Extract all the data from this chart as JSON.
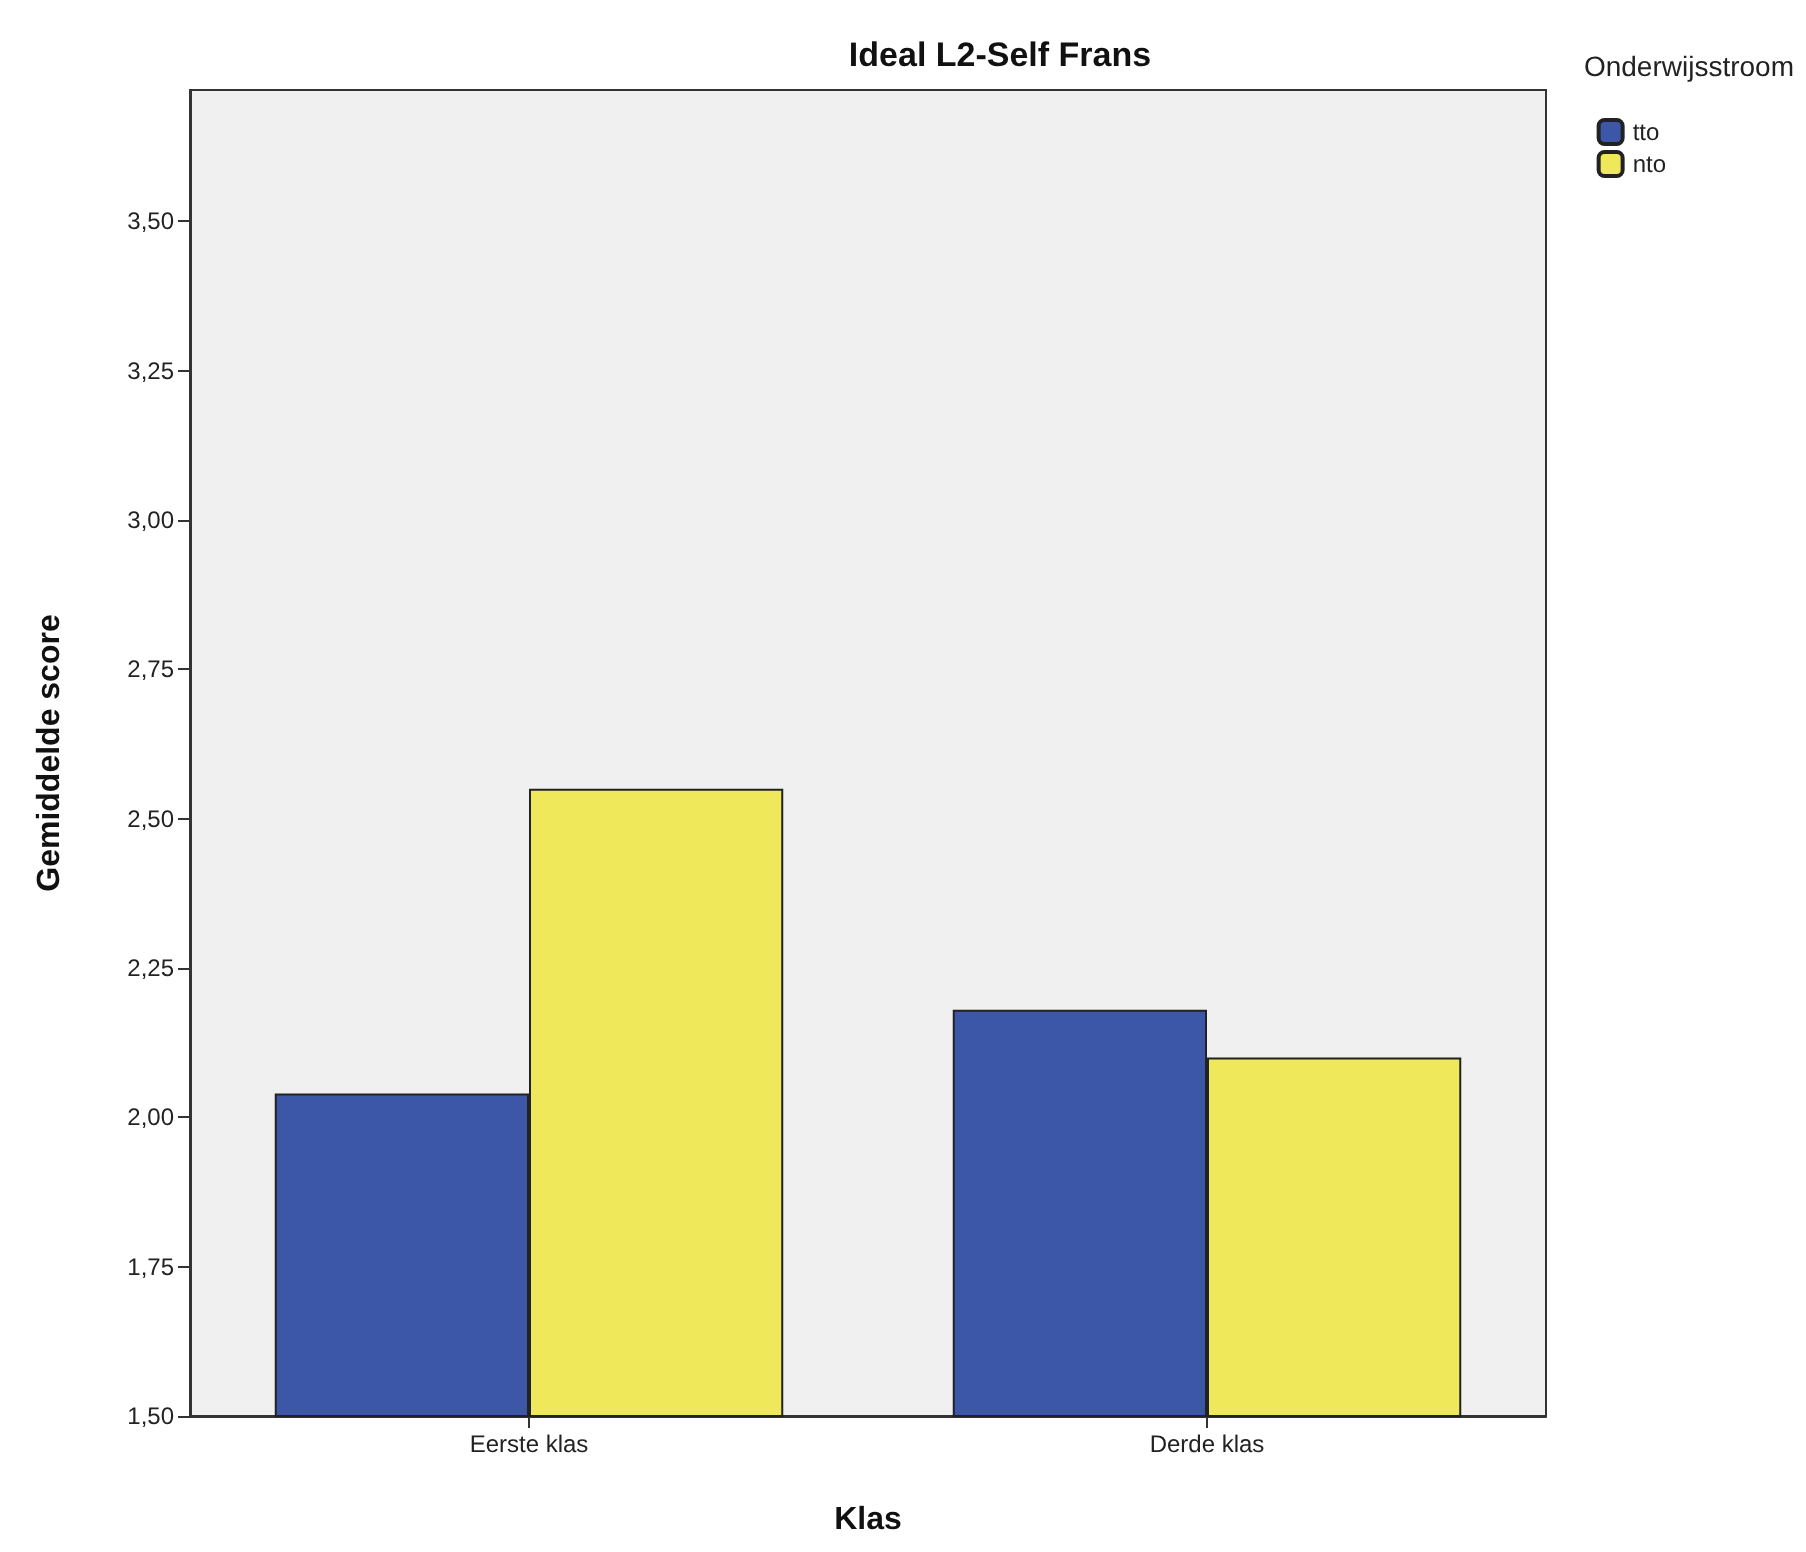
{
  "chart_data": {
    "type": "bar",
    "title": "Ideal L2-Self Frans",
    "xlabel": "Klas",
    "ylabel": "Gemiddelde score",
    "legend_title": "Onderwijsstroom",
    "categories": [
      "Eerste klas",
      "Derde klas"
    ],
    "series": [
      {
        "name": "tto",
        "color": "#3d57a8",
        "values": [
          2.04,
          2.18
        ]
      },
      {
        "name": "nto",
        "color": "#eee85a",
        "values": [
          2.55,
          2.1
        ]
      }
    ],
    "ylim": [
      1.5,
      3.72
    ],
    "yticks": [
      {
        "value": 1.5,
        "label": "1,50"
      },
      {
        "value": 1.75,
        "label": "1,75"
      },
      {
        "value": 2,
        "label": "2,00"
      },
      {
        "value": 2.25,
        "label": "2,25"
      },
      {
        "value": 2.5,
        "label": "2,50"
      },
      {
        "value": 2.75,
        "label": "2,75"
      },
      {
        "value": 3,
        "label": "3,00"
      },
      {
        "value": 3.25,
        "label": "3,25"
      },
      {
        "value": 3.5,
        "label": "3,50"
      }
    ],
    "grid": false,
    "legend": "top right"
  }
}
